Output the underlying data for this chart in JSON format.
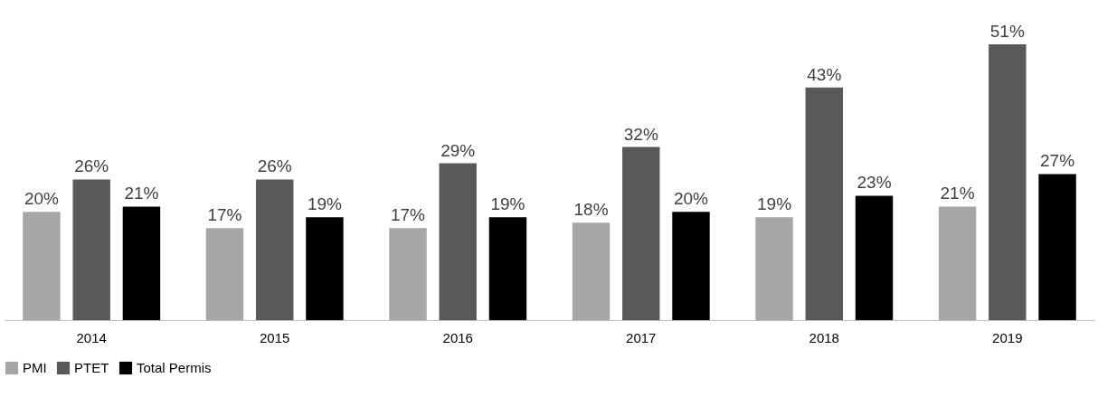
{
  "chart_data": {
    "type": "bar",
    "categories": [
      "2014",
      "2015",
      "2016",
      "2017",
      "2018",
      "2019"
    ],
    "series": [
      {
        "name": "PMI",
        "color": "#a6a6a6",
        "values": [
          20,
          17,
          17,
          18,
          19,
          21
        ],
        "value_labels": [
          "20%",
          "17%",
          "17%",
          "18%",
          "19%",
          "21%"
        ]
      },
      {
        "name": "PTET",
        "color": "#595959",
        "values": [
          26,
          26,
          29,
          32,
          43,
          51
        ],
        "value_labels": [
          "26%",
          "26%",
          "29%",
          "32%",
          "43%",
          "51%"
        ]
      },
      {
        "name": "Total Permis",
        "color": "#000000",
        "values": [
          21,
          19,
          19,
          20,
          23,
          27
        ],
        "value_labels": [
          "21%",
          "19%",
          "19%",
          "20%",
          "23%",
          "27%"
        ]
      }
    ],
    "tick_labels": "x",
    "legend": "bottom",
    "grid": false
  }
}
